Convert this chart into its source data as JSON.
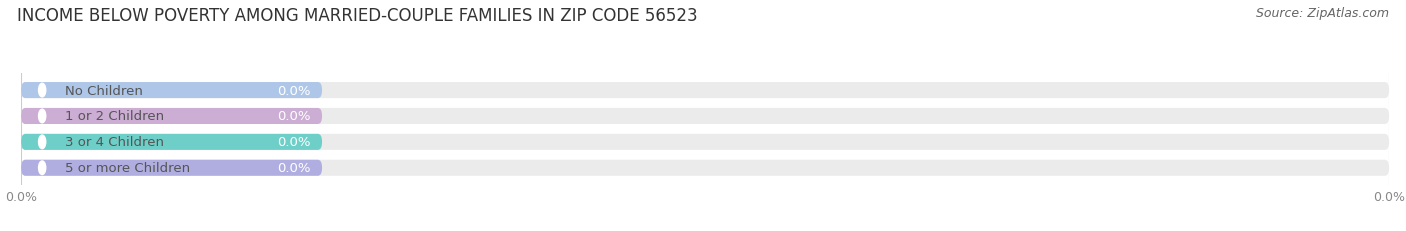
{
  "title": "INCOME BELOW POVERTY AMONG MARRIED-COUPLE FAMILIES IN ZIP CODE 56523",
  "source": "Source: ZipAtlas.com",
  "categories": [
    "No Children",
    "1 or 2 Children",
    "3 or 4 Children",
    "5 or more Children"
  ],
  "values": [
    0.0,
    0.0,
    0.0,
    0.0
  ],
  "bar_colors": [
    "#aec6e8",
    "#ccadd4",
    "#6ecfc8",
    "#b0aee0"
  ],
  "bar_bg_color": "#ebebeb",
  "background_color": "#ffffff",
  "title_fontsize": 12,
  "label_fontsize": 9.5,
  "value_fontsize": 9.5,
  "source_fontsize": 9,
  "source_color": "#666666",
  "title_color": "#333333",
  "label_color": "#555555",
  "value_color": "#ffffff",
  "xtick_color": "#888888",
  "xtick_fontsize": 9,
  "grid_color": "#cccccc"
}
